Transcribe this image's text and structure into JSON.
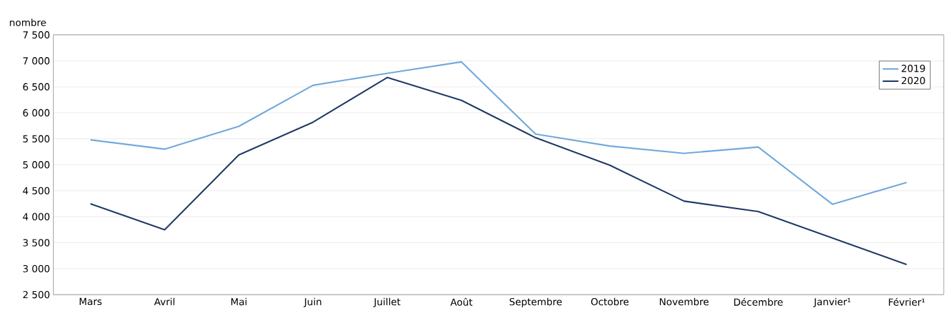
{
  "chart_data": {
    "type": "line",
    "ylabel": "nombre",
    "categories": [
      "Mars",
      "Avril",
      "Mai",
      "Juin",
      "Juillet",
      "Août",
      "Septembre",
      "Octobre",
      "Novembre",
      "Décembre",
      "Janvier¹",
      "Février¹"
    ],
    "series": [
      {
        "name": "2019",
        "color": "#6fa8dc",
        "values": [
          5480,
          5300,
          5740,
          6530,
          6760,
          6980,
          5590,
          5360,
          5220,
          5340,
          4240,
          4660
        ]
      },
      {
        "name": "2020",
        "color": "#1f3864",
        "values": [
          4250,
          3750,
          5190,
          5820,
          6680,
          6240,
          5520,
          4990,
          4300,
          4100,
          3590,
          3080
        ]
      }
    ],
    "ylim": [
      2500,
      7500
    ],
    "yticks": [
      {
        "value": 2500,
        "label": "2 500"
      },
      {
        "value": 3000,
        "label": "3 000"
      },
      {
        "value": 3500,
        "label": "3 500"
      },
      {
        "value": 4000,
        "label": "4 000"
      },
      {
        "value": 4500,
        "label": "4 500"
      },
      {
        "value": 5000,
        "label": "5 000"
      },
      {
        "value": 5500,
        "label": "5 500"
      },
      {
        "value": 6000,
        "label": "6 000"
      },
      {
        "value": 6500,
        "label": "6 500"
      },
      {
        "value": 7000,
        "label": "7 000"
      },
      {
        "value": 7500,
        "label": "7 500"
      }
    ],
    "grid": "y",
    "legend": "top right",
    "marker": "none",
    "line_style": "solid"
  }
}
